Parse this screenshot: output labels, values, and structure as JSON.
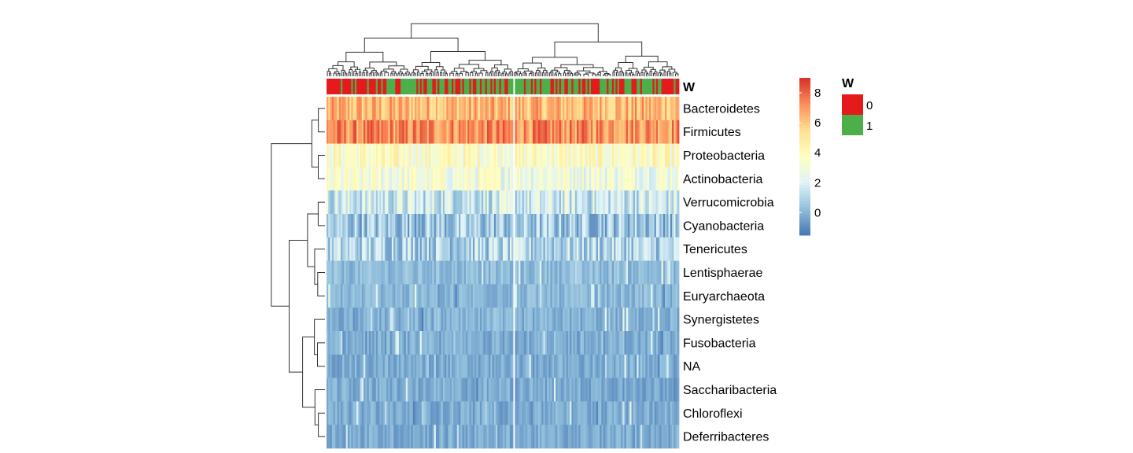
{
  "chart_data": {
    "type": "heatmap",
    "annotation_name": "W",
    "rows": [
      "Bacteroidetes",
      "Firmicutes",
      "Proteobacteria",
      "Actinobacteria",
      "Verrucomicrobia",
      "Cyanobacteria",
      "Tenericutes",
      "Lentisphaerae",
      "Euryarchaeota",
      "Synergistetes",
      "Fusobacteria",
      "NA",
      "Saccharibacteria",
      "Chloroflexi",
      "Deferribacteres"
    ],
    "row_mean_values": [
      6.3,
      7.2,
      3.6,
      3.0,
      1.6,
      0.6,
      1.0,
      0.2,
      0.1,
      -0.1,
      -0.2,
      -0.2,
      -0.2,
      -0.2,
      -0.2
    ],
    "color_scale": {
      "min": -1.5,
      "max": 9,
      "stops": [
        "#4575b4",
        "#91bfdb",
        "#e0f3f8",
        "#ffffbf",
        "#fee090",
        "#fc8d59",
        "#d73027"
      ],
      "ticks": [
        0,
        2,
        4,
        6,
        8
      ]
    },
    "legend": {
      "title": "W",
      "entries": [
        {
          "label": "0",
          "color": "#e41a1c"
        },
        {
          "label": "1",
          "color": "#4daf4a"
        }
      ]
    },
    "n_columns": 200,
    "column_split_after_fraction": 0.53,
    "row_dendrogram": true,
    "column_dendrogram": true
  }
}
